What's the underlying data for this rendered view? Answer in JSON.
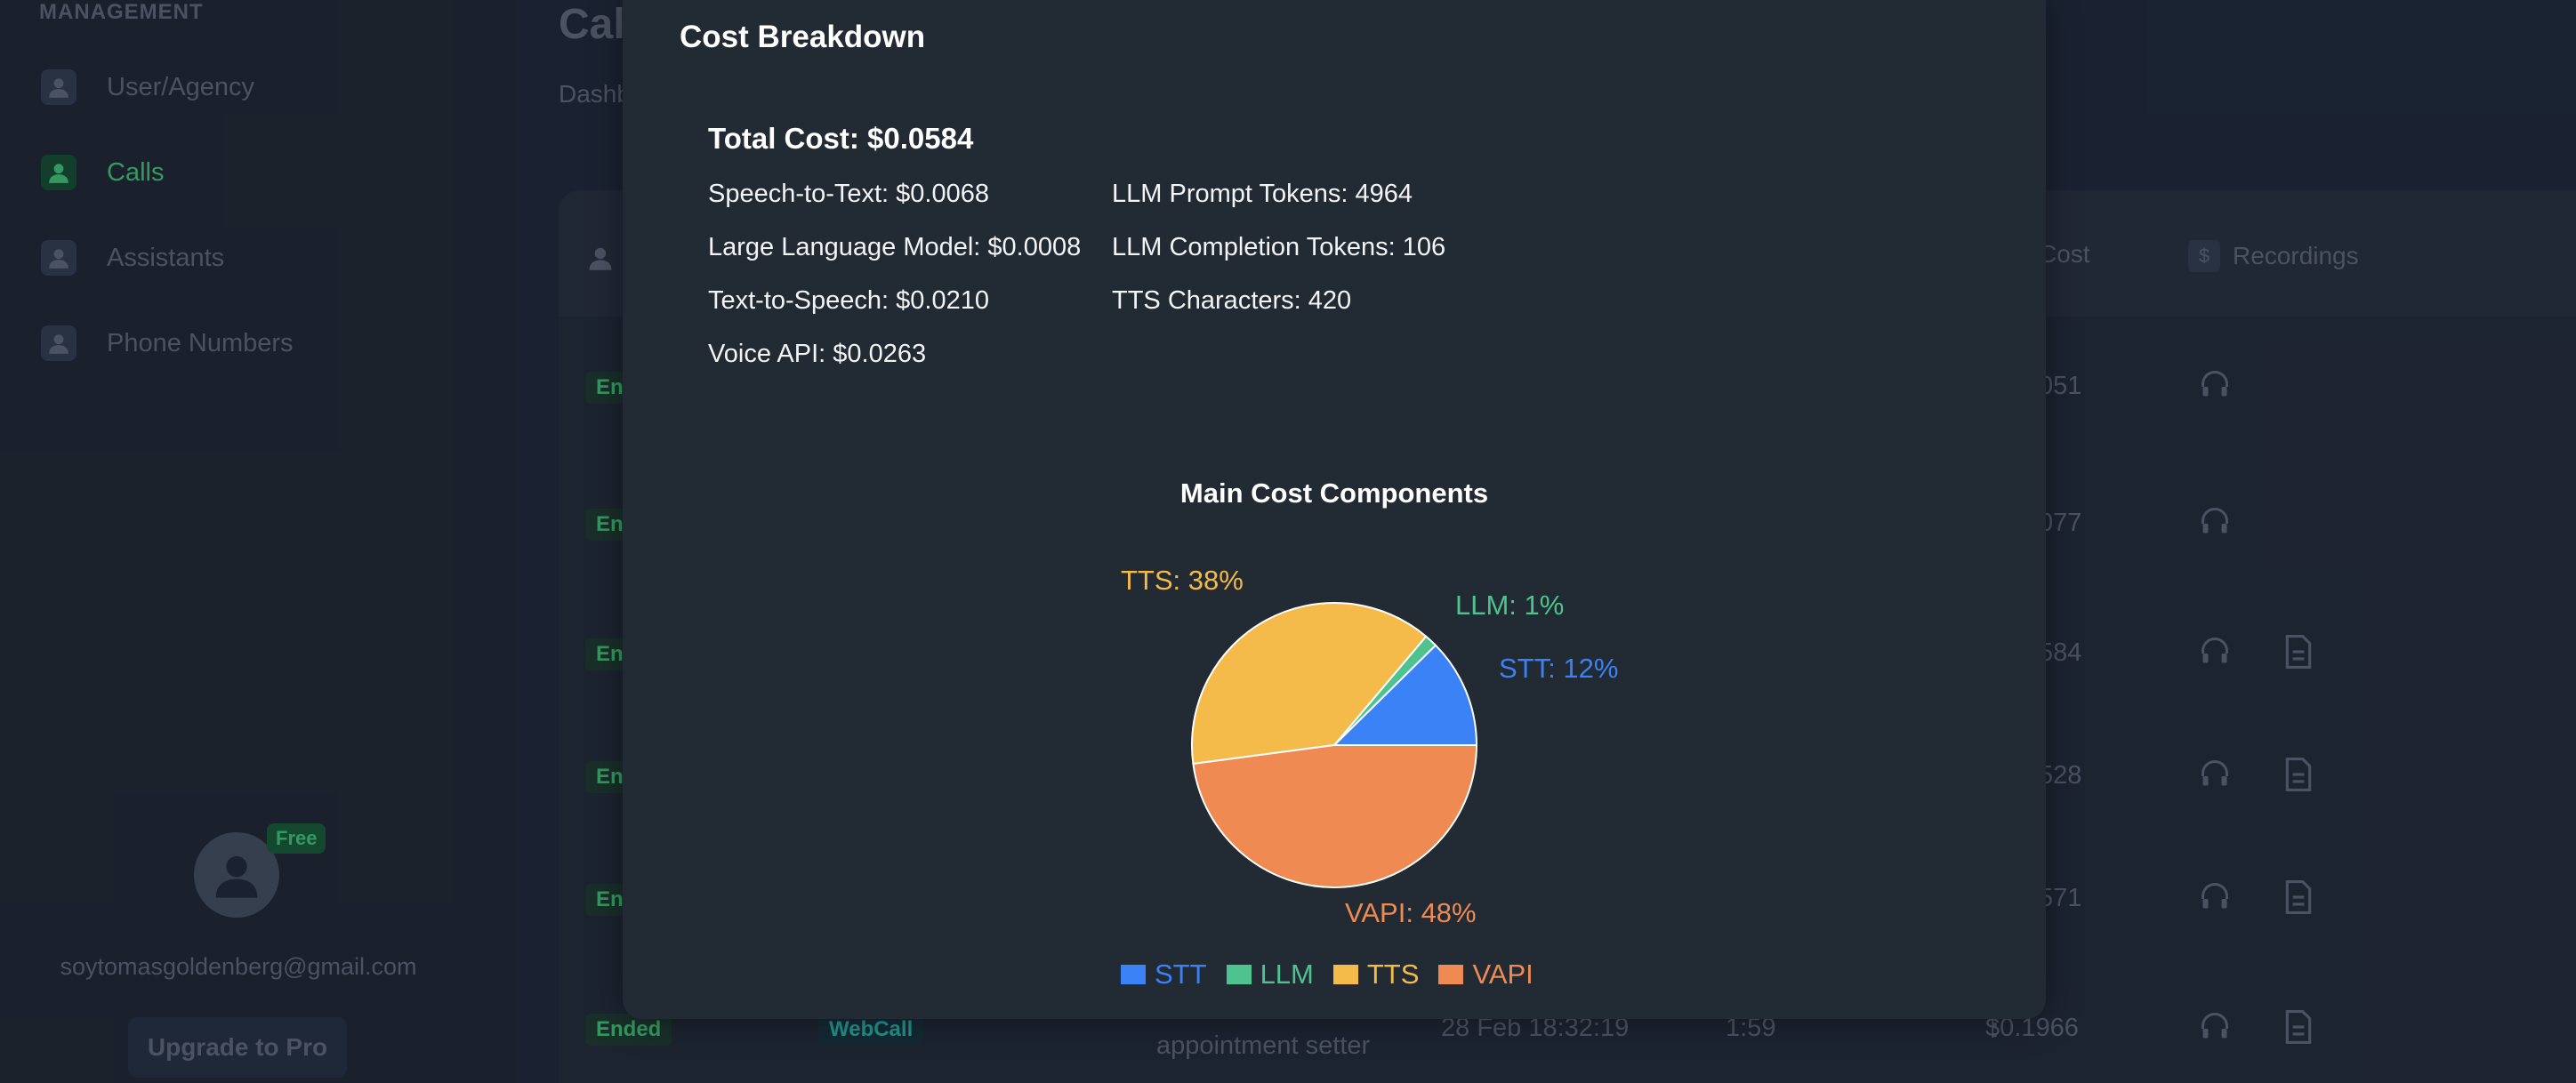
{
  "sidebar": {
    "section_label": "MANAGEMENT",
    "items": [
      {
        "label": "User/Agency"
      },
      {
        "label": "Calls"
      },
      {
        "label": "Assistants"
      },
      {
        "label": "Phone Numbers"
      }
    ],
    "user": {
      "badge": "Free",
      "email": "soytomasgoldenberg@gmail.com",
      "upgrade_label": "Upgrade to Pro"
    }
  },
  "page": {
    "title": "Cal",
    "breadcrumb": "Dashb"
  },
  "table": {
    "headers": {
      "cost": "Cost",
      "recordings": "Recordings"
    },
    "rows": [
      {
        "status": "End",
        "cost": "051"
      },
      {
        "status": "En",
        "cost": "077"
      },
      {
        "status": "En",
        "cost": "584"
      },
      {
        "status": "En",
        "cost": "528"
      },
      {
        "status": "En",
        "cost": "571"
      },
      {
        "status": "Ended",
        "type": "WebCall",
        "assistant": "appointment setter",
        "date": "28 Feb 18:32:19",
        "duration": "1:59",
        "cost": "$0.1966"
      }
    ]
  },
  "modal": {
    "title": "Cost Breakdown",
    "total": "Total Cost: $0.0584",
    "left_lines": [
      "Speech-to-Text: $0.0068",
      "Large Language Model: $0.0008",
      "Text-to-Speech: $0.0210",
      "Voice API: $0.0263"
    ],
    "right_lines": [
      "LLM Prompt Tokens: 4964",
      "LLM Completion Tokens: 106",
      "TTS Characters: 420"
    ]
  },
  "chart_data": {
    "type": "pie",
    "title": "Main Cost Components",
    "labels": [
      "STT",
      "LLM",
      "TTS",
      "VAPI"
    ],
    "values": [
      0.0068,
      0.0008,
      0.021,
      0.0263
    ],
    "slice_labels": [
      "STT: 12%",
      "LLM: 1%",
      "TTS: 38%",
      "VAPI: 48%"
    ],
    "colors": [
      "#3b82f6",
      "#4fc38f",
      "#f4bb4a",
      "#ef8a52"
    ],
    "legend_position": "bottom"
  }
}
